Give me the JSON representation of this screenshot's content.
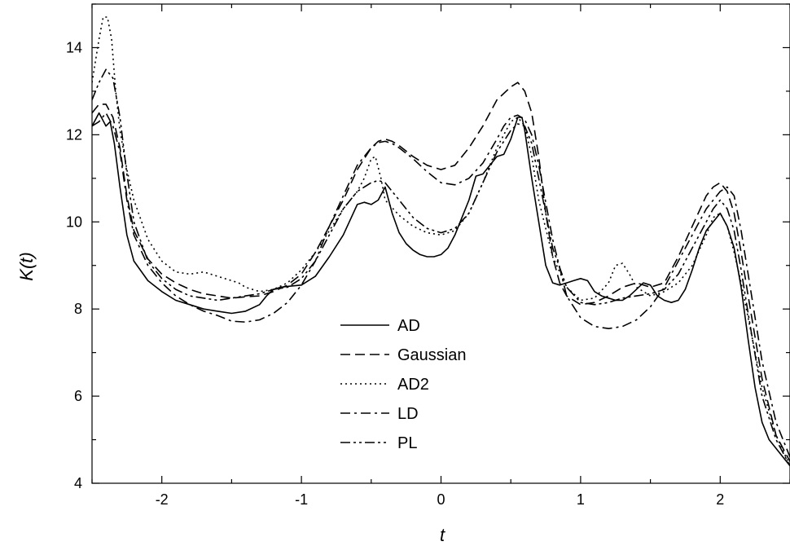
{
  "chart_data": {
    "type": "line",
    "title": "",
    "xlabel": "t",
    "ylabel": "K(t)",
    "xlim": [
      -2.5,
      2.5
    ],
    "ylim": [
      4,
      15
    ],
    "x_ticks": [
      -2,
      -1,
      0,
      1,
      2
    ],
    "y_ticks": [
      4,
      6,
      8,
      10,
      12,
      14
    ],
    "grid": false,
    "legend_position": "center",
    "series": [
      {
        "name": "AD",
        "line_style": "solid",
        "x": [
          -2.5,
          -2.45,
          -2.4,
          -2.37,
          -2.34,
          -2.3,
          -2.25,
          -2.2,
          -2.1,
          -2.0,
          -1.9,
          -1.8,
          -1.7,
          -1.6,
          -1.5,
          -1.4,
          -1.3,
          -1.25,
          -1.2,
          -1.15,
          -1.1,
          -1.0,
          -0.9,
          -0.8,
          -0.7,
          -0.6,
          -0.55,
          -0.5,
          -0.45,
          -0.4,
          -0.35,
          -0.3,
          -0.25,
          -0.2,
          -0.15,
          -0.1,
          -0.05,
          0.0,
          0.05,
          0.1,
          0.15,
          0.2,
          0.25,
          0.3,
          0.35,
          0.4,
          0.45,
          0.5,
          0.55,
          0.58,
          0.6,
          0.65,
          0.7,
          0.75,
          0.8,
          0.85,
          0.9,
          0.95,
          1.0,
          1.05,
          1.1,
          1.15,
          1.2,
          1.25,
          1.3,
          1.35,
          1.4,
          1.45,
          1.5,
          1.55,
          1.6,
          1.65,
          1.7,
          1.75,
          1.8,
          1.85,
          1.9,
          1.95,
          2.0,
          2.05,
          2.1,
          2.15,
          2.2,
          2.25,
          2.3,
          2.35,
          2.4,
          2.45,
          2.5
        ],
        "y": [
          12.2,
          12.5,
          12.2,
          12.3,
          11.8,
          10.8,
          9.7,
          9.1,
          8.65,
          8.4,
          8.2,
          8.1,
          8.0,
          7.95,
          7.9,
          7.95,
          8.1,
          8.3,
          8.45,
          8.5,
          8.52,
          8.55,
          8.75,
          9.2,
          9.7,
          10.4,
          10.45,
          10.4,
          10.5,
          10.8,
          10.2,
          9.75,
          9.5,
          9.35,
          9.25,
          9.2,
          9.2,
          9.25,
          9.4,
          9.7,
          10.1,
          10.5,
          11.05,
          11.1,
          11.3,
          11.5,
          11.55,
          11.9,
          12.4,
          12.4,
          12.1,
          11.0,
          10.0,
          9.0,
          8.6,
          8.55,
          8.6,
          8.65,
          8.7,
          8.65,
          8.4,
          8.3,
          8.25,
          8.2,
          8.2,
          8.3,
          8.45,
          8.6,
          8.55,
          8.3,
          8.2,
          8.15,
          8.2,
          8.45,
          8.9,
          9.4,
          9.8,
          10.0,
          10.2,
          9.9,
          9.4,
          8.5,
          7.3,
          6.2,
          5.4,
          5.0,
          4.8,
          4.6,
          4.4
        ]
      },
      {
        "name": "Gaussian",
        "line_style": "dashed",
        "x": [
          -2.5,
          -2.45,
          -2.4,
          -2.35,
          -2.3,
          -2.25,
          -2.2,
          -2.1,
          -2.0,
          -1.9,
          -1.8,
          -1.7,
          -1.6,
          -1.5,
          -1.4,
          -1.3,
          -1.2,
          -1.1,
          -1.0,
          -0.9,
          -0.8,
          -0.7,
          -0.6,
          -0.5,
          -0.45,
          -0.4,
          -0.35,
          -0.3,
          -0.2,
          -0.1,
          0.0,
          0.1,
          0.2,
          0.3,
          0.4,
          0.5,
          0.55,
          0.6,
          0.65,
          0.7,
          0.75,
          0.8,
          0.85,
          0.9,
          1.0,
          1.1,
          1.2,
          1.3,
          1.4,
          1.5,
          1.6,
          1.7,
          1.8,
          1.9,
          1.95,
          2.0,
          2.05,
          2.1,
          2.15,
          2.2,
          2.3,
          2.4,
          2.5
        ],
        "y": [
          12.5,
          12.7,
          12.7,
          12.4,
          11.7,
          10.6,
          9.8,
          9.15,
          8.8,
          8.6,
          8.45,
          8.35,
          8.3,
          8.25,
          8.28,
          8.3,
          8.4,
          8.55,
          8.8,
          9.3,
          9.9,
          10.5,
          11.2,
          11.7,
          11.85,
          11.9,
          11.85,
          11.75,
          11.5,
          11.3,
          11.2,
          11.3,
          11.7,
          12.2,
          12.8,
          13.1,
          13.2,
          13.0,
          12.5,
          11.5,
          10.2,
          9.2,
          8.6,
          8.3,
          8.1,
          8.15,
          8.3,
          8.5,
          8.6,
          8.5,
          8.6,
          9.2,
          9.9,
          10.6,
          10.8,
          10.9,
          10.7,
          10.2,
          9.3,
          8.3,
          6.4,
          5.1,
          4.5
        ]
      },
      {
        "name": "AD2",
        "line_style": "dotted",
        "x": [
          -2.5,
          -2.45,
          -2.42,
          -2.39,
          -2.36,
          -2.33,
          -2.3,
          -2.25,
          -2.2,
          -2.1,
          -2.0,
          -1.9,
          -1.8,
          -1.7,
          -1.6,
          -1.5,
          -1.45,
          -1.4,
          -1.3,
          -1.2,
          -1.1,
          -1.0,
          -0.9,
          -0.8,
          -0.7,
          -0.6,
          -0.55,
          -0.5,
          -0.47,
          -0.43,
          -0.4,
          -0.3,
          -0.2,
          -0.1,
          0.0,
          0.1,
          0.2,
          0.3,
          0.4,
          0.5,
          0.55,
          0.6,
          0.65,
          0.7,
          0.8,
          0.9,
          1.0,
          1.1,
          1.2,
          1.25,
          1.3,
          1.35,
          1.4,
          1.5,
          1.6,
          1.7,
          1.8,
          1.9,
          1.95,
          2.0,
          2.05,
          2.1,
          2.15,
          2.2,
          2.3,
          2.4,
          2.5
        ],
        "y": [
          13.2,
          14.2,
          14.7,
          14.7,
          14.2,
          13.0,
          12.1,
          11.2,
          10.5,
          9.6,
          9.1,
          8.85,
          8.8,
          8.85,
          8.75,
          8.65,
          8.6,
          8.5,
          8.4,
          8.45,
          8.6,
          8.9,
          9.3,
          9.8,
          10.3,
          10.7,
          11.0,
          11.45,
          11.5,
          11.0,
          10.5,
          10.15,
          9.9,
          9.75,
          9.7,
          9.8,
          10.2,
          10.9,
          11.7,
          12.3,
          12.4,
          12.2,
          11.5,
          10.5,
          9.2,
          8.5,
          8.2,
          8.25,
          8.6,
          9.0,
          9.05,
          8.8,
          8.5,
          8.3,
          8.4,
          8.6,
          9.0,
          9.7,
          10.1,
          10.2,
          9.9,
          9.3,
          8.6,
          7.8,
          6.2,
          5.1,
          4.4
        ]
      },
      {
        "name": "LD",
        "line_style": "dashdot",
        "x": [
          -2.5,
          -2.45,
          -2.4,
          -2.35,
          -2.3,
          -2.25,
          -2.2,
          -2.1,
          -2.0,
          -1.9,
          -1.8,
          -1.7,
          -1.6,
          -1.5,
          -1.4,
          -1.3,
          -1.2,
          -1.1,
          -1.0,
          -0.9,
          -0.8,
          -0.7,
          -0.6,
          -0.5,
          -0.45,
          -0.4,
          -0.35,
          -0.3,
          -0.2,
          -0.1,
          0.0,
          0.1,
          0.2,
          0.3,
          0.4,
          0.45,
          0.5,
          0.55,
          0.6,
          0.65,
          0.7,
          0.8,
          0.9,
          1.0,
          1.1,
          1.2,
          1.3,
          1.4,
          1.5,
          1.6,
          1.7,
          1.8,
          1.9,
          2.0,
          2.05,
          2.1,
          2.15,
          2.2,
          2.3,
          2.4,
          2.5
        ],
        "y": [
          12.2,
          12.3,
          12.5,
          12.2,
          11.6,
          10.5,
          9.7,
          9.0,
          8.6,
          8.3,
          8.1,
          7.95,
          7.85,
          7.72,
          7.7,
          7.75,
          7.9,
          8.15,
          8.55,
          9.1,
          9.9,
          10.6,
          11.3,
          11.7,
          11.82,
          11.85,
          11.8,
          11.7,
          11.45,
          11.15,
          10.9,
          10.85,
          11.0,
          11.35,
          11.9,
          12.2,
          12.4,
          12.45,
          12.35,
          12.0,
          11.3,
          9.6,
          8.3,
          7.8,
          7.6,
          7.55,
          7.6,
          7.75,
          8.05,
          8.5,
          9.1,
          9.7,
          10.3,
          10.7,
          10.8,
          10.6,
          9.8,
          8.8,
          6.8,
          5.4,
          4.6
        ]
      },
      {
        "name": "PL",
        "line_style": "dashdotdot",
        "x": [
          -2.5,
          -2.45,
          -2.4,
          -2.35,
          -2.3,
          -2.25,
          -2.2,
          -2.1,
          -2.0,
          -1.9,
          -1.8,
          -1.7,
          -1.6,
          -1.5,
          -1.4,
          -1.3,
          -1.2,
          -1.1,
          -1.0,
          -0.9,
          -0.8,
          -0.7,
          -0.6,
          -0.5,
          -0.45,
          -0.4,
          -0.3,
          -0.2,
          -0.1,
          0.0,
          0.1,
          0.2,
          0.3,
          0.4,
          0.5,
          0.55,
          0.6,
          0.65,
          0.7,
          0.8,
          0.9,
          1.0,
          1.1,
          1.2,
          1.3,
          1.4,
          1.5,
          1.6,
          1.7,
          1.8,
          1.9,
          1.95,
          2.0,
          2.05,
          2.1,
          2.15,
          2.2,
          2.3,
          2.4,
          2.5
        ],
        "y": [
          12.8,
          13.2,
          13.5,
          13.3,
          12.4,
          11.1,
          10.0,
          9.1,
          8.7,
          8.45,
          8.3,
          8.25,
          8.2,
          8.25,
          8.3,
          8.35,
          8.45,
          8.5,
          8.7,
          9.1,
          9.7,
          10.3,
          10.7,
          10.9,
          10.95,
          10.9,
          10.5,
          10.1,
          9.85,
          9.75,
          9.85,
          10.2,
          10.9,
          11.6,
          12.1,
          12.25,
          12.2,
          11.8,
          11.0,
          9.4,
          8.5,
          8.15,
          8.1,
          8.15,
          8.25,
          8.3,
          8.35,
          8.45,
          8.8,
          9.4,
          10.0,
          10.3,
          10.5,
          10.3,
          9.8,
          8.9,
          7.9,
          6.0,
          5.0,
          4.4
        ]
      }
    ]
  }
}
